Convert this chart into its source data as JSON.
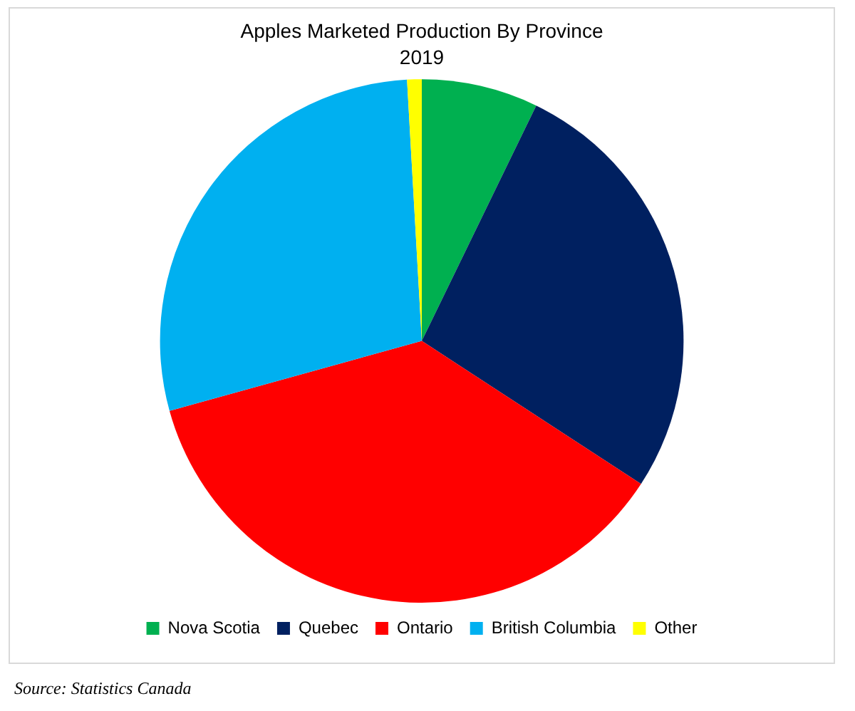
{
  "chart_data": {
    "type": "pie",
    "title": "Apples Marketed Production By Province",
    "subtitle": "2019",
    "categories": [
      "Nova Scotia",
      "Quebec",
      "Ontario",
      "British Columbia",
      "Other"
    ],
    "values": [
      7.2,
      27,
      36.5,
      28.4,
      0.9
    ],
    "colors": [
      "#00b050",
      "#002060",
      "#ff0000",
      "#00b0f0",
      "#ffff00"
    ],
    "legend": "bottom",
    "annotations": [
      "Source: Statistics Canada"
    ]
  }
}
